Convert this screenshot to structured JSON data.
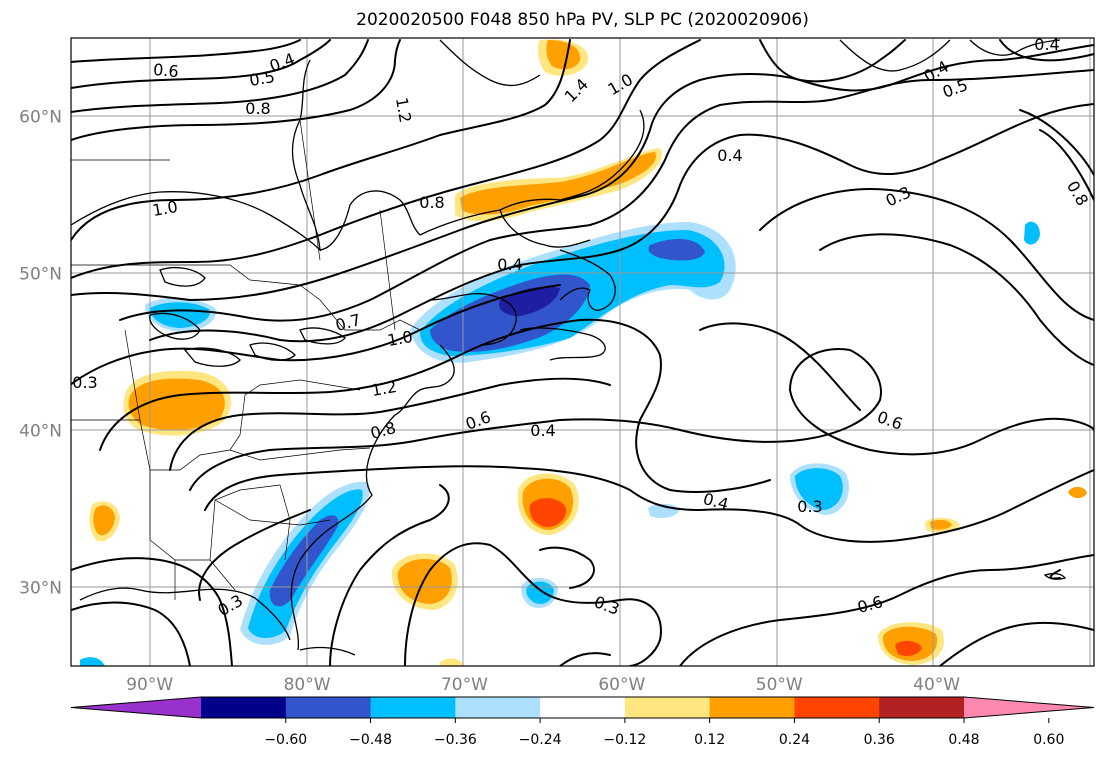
{
  "title": "2020020500 F048 850 hPa PV, SLP PC (2020020906)",
  "lat_labels": [
    {
      "text": "60°N",
      "lat": 60
    },
    {
      "text": "50°N",
      "lat": 50
    },
    {
      "text": "40°N",
      "lat": 40
    },
    {
      "text": "30°N",
      "lat": 30
    }
  ],
  "lon_labels": [
    {
      "text": "90°W",
      "lon": -90
    },
    {
      "text": "80°W",
      "lon": -80
    },
    {
      "text": "70°W",
      "lon": -70
    },
    {
      "text": "60°W",
      "lon": -60
    },
    {
      "text": "50°W",
      "lon": -50
    },
    {
      "text": "40°W",
      "lon": -40
    }
  ],
  "contour_labels": [
    "0.4",
    "0.5",
    "0.6",
    "0.8",
    "1.2",
    "1.4",
    "1.0",
    "0.4",
    "0.5",
    "0.4",
    "0.4",
    "0.3",
    "0.8",
    "1.0",
    "0.8",
    "0.4",
    "0.7",
    "1.0",
    "1.2",
    "0.8",
    "0.6",
    "0.4",
    "0.3",
    "0.6",
    "0.4",
    "0.3",
    "0.6",
    "0.3",
    "0.3"
  ],
  "colorbar": {
    "ticks": [
      "−0.60",
      "−0.48",
      "−0.36",
      "−0.24",
      "−0.12",
      "0.12",
      "0.24",
      "0.36",
      "0.48",
      "0.60"
    ],
    "colors": [
      "#9932CC",
      "#00008B",
      "#3355CC",
      "#00BFFF",
      "#ADE0FF",
      "#FFFFFF",
      "#FFE680",
      "#FFA000",
      "#FF4500",
      "#B22222",
      "#FF88B0"
    ]
  },
  "colors": {
    "dark_blue": "#1E1EA0",
    "mid_blue": "#3355CC",
    "cyan": "#00BFFF",
    "light_blue": "#ADE0FF",
    "light_yellow": "#FFE680",
    "orange": "#FFA000",
    "red_orange": "#FF4500"
  }
}
